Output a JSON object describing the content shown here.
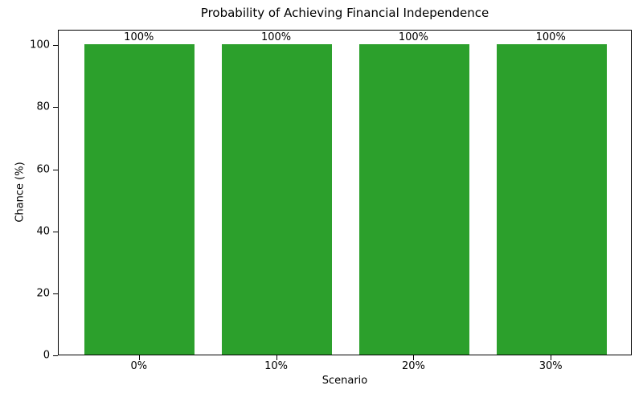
{
  "chart_data": {
    "type": "bar",
    "title": "Probability of Achieving Financial Independence",
    "xlabel": "Scenario",
    "ylabel": "Chance (%)",
    "categories": [
      "0%",
      "10%",
      "20%",
      "30%"
    ],
    "values": [
      100,
      100,
      100,
      100
    ],
    "bar_labels": [
      "100%",
      "100%",
      "100%",
      "100%"
    ],
    "yticks": [
      0,
      20,
      40,
      60,
      80,
      100
    ],
    "ylim": [
      0,
      105
    ],
    "bar_color": "#2ca02c",
    "grid": false,
    "legend_position": "none"
  }
}
